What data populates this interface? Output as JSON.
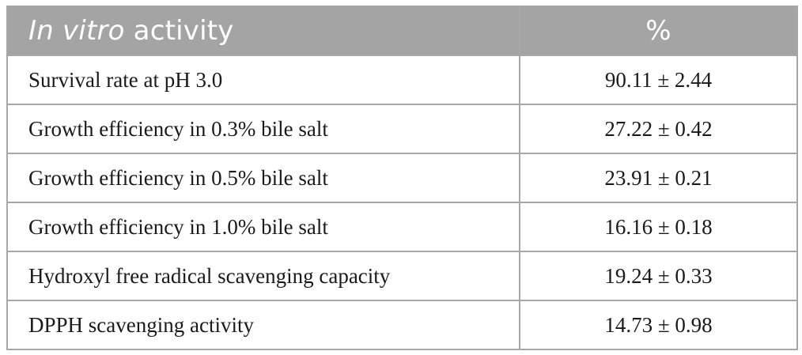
{
  "table": {
    "header": {
      "col1_italic": "In vitro",
      "col1_rest": " activity",
      "col2": "%"
    },
    "rows": [
      {
        "label": "Survival rate at pH 3.0",
        "value": "90.11 ± 2.44"
      },
      {
        "label": "Growth efficiency in 0.3% bile salt",
        "value": "27.22 ± 0.42"
      },
      {
        "label": "Growth efficiency in 0.5% bile salt",
        "value": "23.91 ± 0.21"
      },
      {
        "label": "Growth efficiency in 1.0% bile salt",
        "value": "16.16 ± 0.18"
      },
      {
        "label": "Hydroxyl free radical scavenging capacity",
        "value": "19.24 ± 0.33"
      },
      {
        "label": "DPPH scavenging activity",
        "value": "14.73 ± 0.98"
      }
    ]
  },
  "colors": {
    "header_bg": "#a4a4a4",
    "header_text": "#ffffff",
    "border": "#a7a7a7",
    "body_text": "#1a1a1a"
  }
}
